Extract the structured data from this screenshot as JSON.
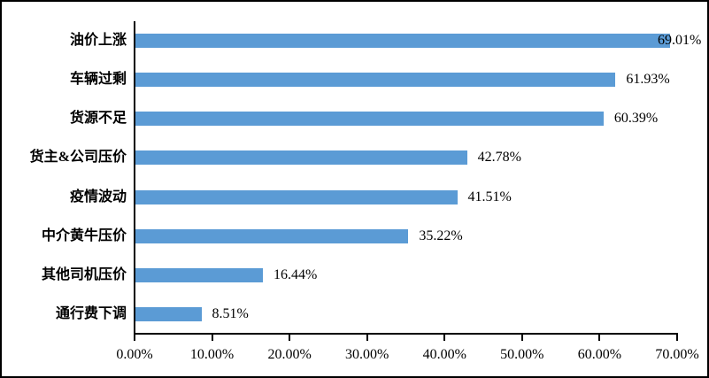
{
  "chart_data": {
    "type": "bar",
    "orientation": "horizontal",
    "title": "",
    "categories": [
      "油价上涨",
      "车辆过剩",
      "货源不足",
      "货主&公司压价",
      "疫情波动",
      "中介黄牛压价",
      "其他司机压价",
      "通行费下调"
    ],
    "values": [
      69.01,
      61.93,
      60.39,
      42.78,
      41.51,
      35.22,
      16.44,
      8.51
    ],
    "value_labels": [
      "69.01%",
      "61.93%",
      "60.39%",
      "42.78%",
      "41.51%",
      "35.22%",
      "16.44%",
      "8.51%"
    ],
    "x_tick_values": [
      0,
      10,
      20,
      30,
      40,
      50,
      60,
      70
    ],
    "x_tick_labels": [
      "0.00%",
      "10.00%",
      "20.00%",
      "30.00%",
      "40.00%",
      "50.00%",
      "60.00%",
      "70.00%"
    ],
    "xlim": [
      0,
      70
    ],
    "grid": false,
    "legend": false,
    "bar_color": "#5b9bd5",
    "axis_color": "#000000",
    "text_color": "#000000",
    "background_color": "#ffffff"
  }
}
